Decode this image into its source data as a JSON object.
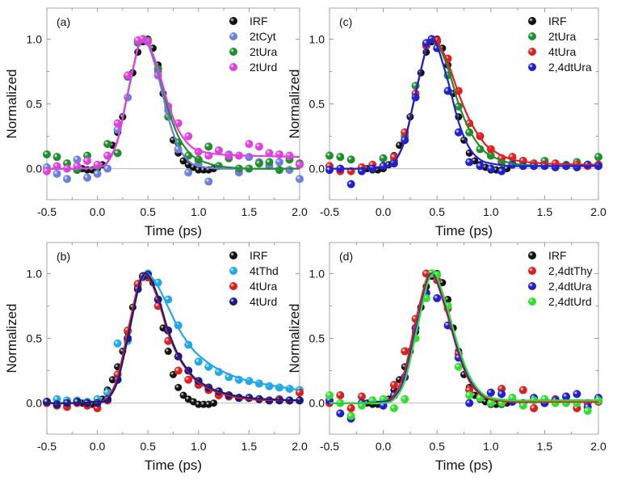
{
  "chart_data": [
    {
      "type": "scatter",
      "panel_label": "(a)",
      "xlabel": "Time (ps)",
      "ylabel": "Normalized",
      "xlim": [
        -0.5,
        2.0
      ],
      "ylim": [
        -0.24,
        1.24
      ],
      "xticks": [
        "-0.5",
        "0.0",
        "0.5",
        "1.0",
        "1.5",
        "2.0"
      ],
      "yticks": [
        "0.0",
        "0.5",
        "1.0"
      ],
      "legend_position": "top-right",
      "irf": {
        "name": "IRF",
        "color": "#111111",
        "x": [
          -0.15,
          -0.1,
          -0.05,
          0,
          0.05,
          0.1,
          0.15,
          0.2,
          0.25,
          0.3,
          0.35,
          0.4,
          0.45,
          0.5,
          0.55,
          0.6,
          0.65,
          0.7,
          0.75,
          0.8,
          0.85,
          0.9,
          0.95,
          1.0,
          1.05,
          1.1,
          1.15
        ],
        "y": [
          0,
          -0.01,
          -0.01,
          0,
          0.03,
          0.1,
          0.18,
          0.28,
          0.4,
          0.55,
          0.74,
          0.9,
          0.98,
          1.0,
          0.93,
          0.8,
          0.58,
          0.4,
          0.22,
          0.12,
          0.06,
          0.03,
          0.01,
          -0.01,
          -0.01,
          -0.01,
          0
        ]
      },
      "x": [
        -0.5,
        -0.4,
        -0.3,
        -0.2,
        -0.1,
        0,
        0.1,
        0.2,
        0.3,
        0.4,
        0.45,
        0.5,
        0.6,
        0.7,
        0.8,
        0.9,
        1.0,
        1.1,
        1.2,
        1.3,
        1.4,
        1.5,
        1.6,
        1.7,
        1.8,
        1.9,
        2.0
      ],
      "fit_x": [
        -0.5,
        -0.2,
        0,
        0.1,
        0.2,
        0.3,
        0.4,
        0.45,
        0.5,
        0.6,
        0.7,
        0.8,
        0.9,
        1.0,
        1.2,
        1.5,
        2.0
      ],
      "series": [
        {
          "name": "2tCyt",
          "color": "#6a7fe0",
          "y": [
            0.01,
            -0.04,
            -0.08,
            0.07,
            -0.07,
            -0.04,
            0.0,
            0.3,
            0.55,
            0.97,
            1.0,
            0.98,
            0.75,
            0.45,
            0.15,
            -0.03,
            0.04,
            -0.1,
            0.14,
            0.11,
            -0.03,
            0.09,
            0.05,
            0.02,
            0.05,
            -0.01,
            -0.08
          ],
          "fit": [
            0,
            0,
            0.01,
            0.05,
            0.22,
            0.58,
            0.93,
            1.0,
            0.96,
            0.72,
            0.4,
            0.17,
            0.06,
            0.02,
            0,
            0,
            0
          ]
        },
        {
          "name": "2tUra",
          "color": "#1f8f2e",
          "y": [
            0.11,
            0.09,
            0.04,
            -0.01,
            0.1,
            0.02,
            0.19,
            0.12,
            0.71,
            0.98,
            1.0,
            0.99,
            0.77,
            0.4,
            0.2,
            0.1,
            0.07,
            0.17,
            0.02,
            0.08,
            0.0,
            0.0,
            0.04,
            0.05,
            -0.01,
            0.07,
            0.04
          ],
          "fit": [
            0,
            0,
            0.01,
            0.05,
            0.22,
            0.58,
            0.93,
            1.0,
            0.97,
            0.76,
            0.46,
            0.25,
            0.13,
            0.07,
            0.02,
            0,
            0
          ]
        },
        {
          "name": "2tUrd",
          "color": "#e040e0",
          "y": [
            -0.02,
            0.02,
            0.0,
            0.02,
            0.06,
            0.03,
            0.1,
            0.35,
            0.72,
            0.99,
            1.0,
            0.98,
            0.72,
            0.48,
            0.35,
            0.25,
            0.13,
            0.1,
            0.14,
            0.1,
            0.1,
            0.19,
            0.17,
            0.12,
            0.11,
            0.1,
            0.03
          ],
          "fit": [
            0,
            0,
            0.01,
            0.05,
            0.22,
            0.58,
            0.93,
            1.0,
            0.97,
            0.77,
            0.5,
            0.3,
            0.19,
            0.14,
            0.11,
            0.1,
            0.09
          ]
        }
      ]
    },
    {
      "type": "scatter",
      "panel_label": "(c)",
      "xlabel": "Time (ps)",
      "ylabel": "Normalized",
      "xlim": [
        -0.5,
        2.0
      ],
      "ylim": [
        -0.24,
        1.24
      ],
      "xticks": [
        "-0.5",
        "0.0",
        "0.5",
        "1.0",
        "1.5",
        "2.0"
      ],
      "yticks": [
        "0.0",
        "0.5",
        "1.0"
      ],
      "legend_position": "top-right",
      "irf": {
        "name": "IRF",
        "color": "#111111",
        "x": [
          -0.15,
          -0.1,
          -0.05,
          0,
          0.05,
          0.1,
          0.15,
          0.2,
          0.25,
          0.3,
          0.35,
          0.4,
          0.45,
          0.5,
          0.55,
          0.6,
          0.65,
          0.7,
          0.75,
          0.8,
          0.85,
          0.9,
          0.95,
          1.0,
          1.05,
          1.1,
          1.15
        ],
        "y": [
          0,
          -0.01,
          -0.01,
          0,
          0.03,
          0.1,
          0.18,
          0.28,
          0.4,
          0.55,
          0.74,
          0.9,
          0.98,
          1.0,
          0.93,
          0.8,
          0.58,
          0.4,
          0.22,
          0.12,
          0.06,
          0.03,
          0.01,
          -0.01,
          -0.01,
          -0.01,
          0
        ]
      },
      "x": [
        -0.5,
        -0.4,
        -0.3,
        -0.2,
        -0.1,
        0,
        0.1,
        0.2,
        0.3,
        0.4,
        0.45,
        0.5,
        0.6,
        0.7,
        0.8,
        0.9,
        1.0,
        1.1,
        1.2,
        1.3,
        1.4,
        1.5,
        1.6,
        1.7,
        1.8,
        1.9,
        2.0
      ],
      "fit_x": [
        -0.5,
        -0.2,
        0,
        0.1,
        0.2,
        0.3,
        0.4,
        0.45,
        0.5,
        0.6,
        0.7,
        0.8,
        0.9,
        1.0,
        1.2,
        1.5,
        2.0
      ],
      "series": [
        {
          "name": "2tUra",
          "color": "#1f8f2e",
          "y": [
            0.1,
            0.09,
            0.07,
            0.0,
            0.0,
            0.08,
            0.06,
            0.25,
            0.64,
            0.95,
            1.0,
            0.98,
            0.72,
            0.48,
            0.28,
            0.15,
            0.1,
            0.05,
            0.04,
            0.06,
            0.03,
            0.06,
            0.02,
            0.03,
            0.05,
            0.03,
            0.09
          ],
          "fit": [
            0,
            0,
            0.01,
            0.05,
            0.22,
            0.58,
            0.93,
            1.0,
            0.97,
            0.78,
            0.5,
            0.3,
            0.17,
            0.1,
            0.04,
            0.02,
            0.02
          ]
        },
        {
          "name": "4tUra",
          "color": "#e02020",
          "y": [
            0.02,
            -0.02,
            -0.02,
            0.01,
            0.03,
            0.02,
            0.09,
            0.28,
            0.58,
            0.95,
            1.0,
            0.99,
            0.85,
            0.6,
            0.35,
            0.25,
            0.15,
            0.08,
            0.09,
            0.06,
            0.04,
            0.03,
            0.04,
            0.02,
            0.03,
            0.02,
            0.03
          ],
          "fit": [
            0,
            0,
            0.01,
            0.05,
            0.22,
            0.58,
            0.93,
            1.0,
            0.98,
            0.82,
            0.58,
            0.38,
            0.24,
            0.15,
            0.07,
            0.04,
            0.03
          ]
        },
        {
          "name": "2,4dtUra",
          "color": "#2020d0",
          "y": [
            -0.01,
            0.0,
            -0.12,
            -0.02,
            0.0,
            0.02,
            0.04,
            0.22,
            0.55,
            0.97,
            1.0,
            0.93,
            0.6,
            0.28,
            0.05,
            0.02,
            0.0,
            -0.02,
            0.03,
            0.02,
            0.02,
            0.02,
            0.01,
            0.02,
            0.01,
            0.03,
            0.02
          ],
          "fit": [
            0,
            0,
            0.01,
            0.05,
            0.22,
            0.58,
            0.93,
            1.0,
            0.95,
            0.68,
            0.36,
            0.16,
            0.07,
            0.04,
            0.02,
            0.02,
            0.02
          ]
        }
      ]
    },
    {
      "type": "scatter",
      "panel_label": "(b)",
      "xlabel": "Time (ps)",
      "ylabel": "Normalized",
      "xlim": [
        -0.5,
        2.0
      ],
      "ylim": [
        -0.24,
        1.24
      ],
      "xticks": [
        "-0.5",
        "0.0",
        "0.5",
        "1.0",
        "1.5",
        "2.0"
      ],
      "yticks": [
        "0.0",
        "0.5",
        "1.0"
      ],
      "legend_position": "top-right",
      "irf": {
        "name": "IRF",
        "color": "#111111",
        "x": [
          -0.15,
          -0.1,
          -0.05,
          0,
          0.05,
          0.1,
          0.15,
          0.2,
          0.25,
          0.3,
          0.35,
          0.4,
          0.45,
          0.5,
          0.55,
          0.6,
          0.65,
          0.7,
          0.75,
          0.8,
          0.85,
          0.9,
          0.95,
          1.0,
          1.05,
          1.1,
          1.15
        ],
        "y": [
          0,
          -0.01,
          -0.01,
          0,
          0.03,
          0.1,
          0.18,
          0.28,
          0.4,
          0.55,
          0.74,
          0.9,
          0.98,
          1.0,
          0.93,
          0.8,
          0.58,
          0.4,
          0.22,
          0.12,
          0.06,
          0.03,
          0.01,
          -0.01,
          -0.01,
          -0.01,
          0
        ]
      },
      "x": [
        -0.5,
        -0.4,
        -0.3,
        -0.2,
        -0.1,
        0,
        0.1,
        0.2,
        0.3,
        0.4,
        0.45,
        0.5,
        0.6,
        0.7,
        0.8,
        0.9,
        1.0,
        1.1,
        1.2,
        1.3,
        1.4,
        1.5,
        1.6,
        1.7,
        1.8,
        1.9,
        2.0
      ],
      "fit_x": [
        -0.5,
        -0.2,
        0,
        0.1,
        0.2,
        0.3,
        0.4,
        0.45,
        0.5,
        0.6,
        0.7,
        0.8,
        0.9,
        1.0,
        1.2,
        1.5,
        2.0
      ],
      "series": [
        {
          "name": "4tThd",
          "color": "#22a8e8",
          "y": [
            0.01,
            0.03,
            0.02,
            0.02,
            0.01,
            0.03,
            0.08,
            0.46,
            0.48,
            0.92,
            0.97,
            1.0,
            0.93,
            0.8,
            0.6,
            0.45,
            0.32,
            0.28,
            0.24,
            0.2,
            0.18,
            0.17,
            0.15,
            0.13,
            0.12,
            0.11,
            0.1
          ],
          "fit": [
            0,
            0,
            0.01,
            0.04,
            0.18,
            0.5,
            0.87,
            0.97,
            1.0,
            0.9,
            0.74,
            0.58,
            0.46,
            0.37,
            0.26,
            0.17,
            0.1
          ]
        },
        {
          "name": "4tUra",
          "color": "#e02020",
          "y": [
            0.0,
            -0.02,
            -0.03,
            0.0,
            -0.02,
            -0.04,
            0.02,
            0.22,
            0.56,
            0.92,
            0.98,
            0.97,
            0.75,
            0.48,
            0.25,
            0.18,
            0.14,
            0.1,
            0.06,
            0.05,
            0.04,
            0.04,
            0.03,
            0.02,
            0.03,
            0.02,
            0.08
          ],
          "fit": [
            0,
            0,
            0.01,
            0.04,
            0.2,
            0.55,
            0.9,
            0.99,
            0.98,
            0.8,
            0.54,
            0.36,
            0.24,
            0.16,
            0.08,
            0.03,
            0.02
          ]
        },
        {
          "name": "4tUrd",
          "color": "#1a1a80",
          "y": [
            0.01,
            -0.01,
            0.0,
            0.01,
            0.0,
            0.0,
            0.03,
            0.18,
            0.5,
            0.88,
            0.98,
            0.99,
            0.8,
            0.56,
            0.36,
            0.25,
            0.17,
            0.12,
            0.09,
            0.06,
            0.04,
            0.04,
            0.03,
            0.02,
            0.02,
            0.02,
            0.02
          ],
          "fit": [
            0,
            0,
            0.01,
            0.03,
            0.17,
            0.5,
            0.87,
            0.98,
            0.99,
            0.82,
            0.56,
            0.37,
            0.25,
            0.17,
            0.09,
            0.04,
            0.02
          ]
        }
      ]
    },
    {
      "type": "scatter",
      "panel_label": "(d)",
      "xlabel": "Time (ps)",
      "ylabel": "Normalized",
      "xlim": [
        -0.5,
        2.0
      ],
      "ylim": [
        -0.24,
        1.24
      ],
      "xticks": [
        "-0.5",
        "0.0",
        "0.5",
        "1.0",
        "1.5",
        "2.0"
      ],
      "yticks": [
        "0.0",
        "0.5",
        "1.0"
      ],
      "legend_position": "top-right",
      "irf": {
        "name": "IRF",
        "color": "#111111",
        "x": [
          -0.15,
          -0.1,
          -0.05,
          0,
          0.05,
          0.1,
          0.15,
          0.2,
          0.25,
          0.3,
          0.35,
          0.4,
          0.45,
          0.5,
          0.55,
          0.6,
          0.65,
          0.7,
          0.75,
          0.8,
          0.85,
          0.9,
          0.95,
          1.0,
          1.05,
          1.1,
          1.15
        ],
        "y": [
          0,
          -0.01,
          -0.01,
          0,
          0.03,
          0.1,
          0.18,
          0.28,
          0.4,
          0.55,
          0.74,
          0.9,
          0.98,
          1.0,
          0.93,
          0.8,
          0.58,
          0.4,
          0.22,
          0.12,
          0.06,
          0.03,
          0.01,
          -0.01,
          -0.01,
          -0.01,
          0
        ]
      },
      "x": [
        -0.5,
        -0.4,
        -0.3,
        -0.2,
        -0.1,
        0,
        0.1,
        0.2,
        0.3,
        0.4,
        0.45,
        0.5,
        0.6,
        0.7,
        0.8,
        0.9,
        1.0,
        1.1,
        1.2,
        1.3,
        1.4,
        1.5,
        1.6,
        1.7,
        1.8,
        1.9,
        2.0
      ],
      "fit_x": [
        -0.5,
        -0.2,
        0,
        0.1,
        0.2,
        0.3,
        0.4,
        0.45,
        0.5,
        0.6,
        0.7,
        0.8,
        0.9,
        1.0,
        1.2,
        1.5,
        2.0
      ],
      "series": [
        {
          "name": "2,4dtThy",
          "color": "#d82020",
          "y": [
            0.0,
            0.06,
            -0.04,
            0.05,
            0.02,
            0.02,
            0.14,
            0.4,
            0.65,
            1.0,
            1.0,
            0.95,
            0.73,
            0.38,
            0.1,
            0.05,
            0.08,
            0.11,
            0.04,
            0.1,
            -0.04,
            0.0,
            0.03,
            0.05,
            -0.04,
            0.0,
            0.01
          ],
          "fit": [
            0,
            0,
            0.01,
            0.06,
            0.25,
            0.63,
            0.95,
            1.0,
            0.93,
            0.67,
            0.38,
            0.17,
            0.07,
            0.03,
            0.01,
            0.01,
            0.01
          ]
        },
        {
          "name": "2,4dtUra",
          "color": "#2020d0",
          "y": [
            0.02,
            -0.08,
            -0.12,
            0.0,
            0.02,
            -0.02,
            0.06,
            0.2,
            0.58,
            0.85,
            1.0,
            0.81,
            0.6,
            0.35,
            0.0,
            0.04,
            0.08,
            0.07,
            0.01,
            0.0,
            0.04,
            0.0,
            0.02,
            0.05,
            0.07,
            -0.03,
            0.04
          ],
          "fit": [
            0,
            0,
            0.01,
            0.04,
            0.2,
            0.56,
            0.91,
            1.0,
            0.95,
            0.7,
            0.4,
            0.19,
            0.08,
            0.04,
            0.02,
            0.02,
            0.02
          ]
        },
        {
          "name": "2,4dtUrd",
          "color": "#30e030",
          "y": [
            0.06,
            0.0,
            -0.1,
            -0.02,
            0.02,
            0.03,
            -0.04,
            0.03,
            0.5,
            0.81,
            1.0,
            0.99,
            0.75,
            0.28,
            0.06,
            0.04,
            0.0,
            0.0,
            0.04,
            -0.02,
            0.02,
            0.03,
            0.0,
            0.0,
            0.0,
            -0.06,
            0.02
          ],
          "fit": [
            0,
            0,
            0.0,
            0.03,
            0.17,
            0.52,
            0.89,
            0.99,
            0.97,
            0.72,
            0.43,
            0.21,
            0.09,
            0.04,
            0.02,
            0.02,
            0.02
          ]
        }
      ]
    }
  ]
}
